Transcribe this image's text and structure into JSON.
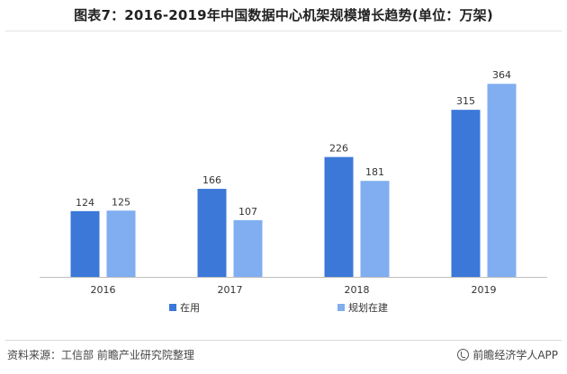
{
  "header": {
    "title": "图表7：2016-2019年中国数据中心机架规模增长趋势(单位：万架)"
  },
  "footer": {
    "source": "资料来源：工信部 前瞻产业研究院整理",
    "brand": "前瞻经济学人APP"
  },
  "colors": {
    "in_use": "#3b78d8",
    "planned": "#80aef0",
    "axis": "#bfbfbf",
    "label": "#333333"
  },
  "chart_data": {
    "type": "bar",
    "title": "",
    "xlabel": "",
    "ylabel": "",
    "categories": [
      "2016",
      "2017",
      "2018",
      "2019"
    ],
    "series": [
      {
        "name": "在用",
        "values": [
          124,
          166,
          226,
          315
        ]
      },
      {
        "name": "规划在建",
        "values": [
          125,
          107,
          181,
          364
        ]
      }
    ],
    "ylim": [
      0,
      400
    ],
    "grid": false,
    "legend": "bottom-center"
  }
}
